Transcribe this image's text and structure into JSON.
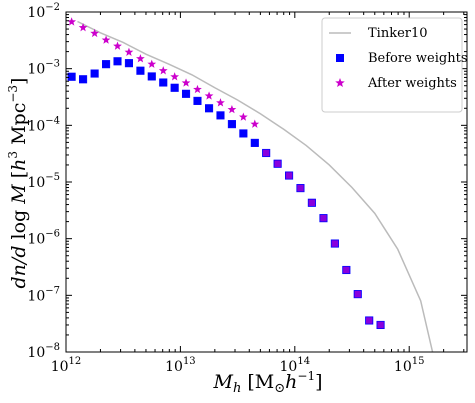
{
  "chart_data": {
    "type": "scatter",
    "title": "",
    "xlabel": "M_h [M_⊙ h^-1]",
    "ylabel": "dn/d log M [h^3 Mpc^-3]",
    "x_scale": "log",
    "y_scale": "log",
    "xlim": [
      1000000000000.0,
      3200000000000000.0
    ],
    "ylim": [
      1e-08,
      0.01
    ],
    "x_ticks": [
      {
        "value": 1000000000000.0,
        "base": "10",
        "exp": "12"
      },
      {
        "value": 10000000000000.0,
        "base": "10",
        "exp": "13"
      },
      {
        "value": 100000000000000.0,
        "base": "10",
        "exp": "14"
      },
      {
        "value": 1000000000000000.0,
        "base": "10",
        "exp": "15"
      }
    ],
    "y_ticks": [
      {
        "value": 1e-08,
        "base": "10",
        "exp": "−8"
      },
      {
        "value": 1e-07,
        "base": "10",
        "exp": "−7"
      },
      {
        "value": 1e-06,
        "base": "10",
        "exp": "−6"
      },
      {
        "value": 1e-05,
        "base": "10",
        "exp": "−5"
      },
      {
        "value": 0.0001,
        "base": "10",
        "exp": "−4"
      },
      {
        "value": 0.001,
        "base": "10",
        "exp": "−3"
      },
      {
        "value": 0.01,
        "base": "10",
        "exp": "−2"
      }
    ],
    "grid": false,
    "legend_position": "top-right",
    "series": [
      {
        "name": "Tinker10",
        "kind": "line",
        "color": "#bbbbbb",
        "x": [
          1260000000000.0,
          2000000000000.0,
          3160000000000.0,
          5000000000000.0,
          7940000000000.0,
          12600000000000.0,
          20000000000000.0,
          31600000000000.0,
          50000000000000.0,
          79400000000000.0,
          126000000000000.0,
          200000000000000.0,
          316000000000000.0,
          500000000000000.0,
          794000000000000.0,
          1260000000000000.0,
          1600000000000000.0
        ],
        "y": [
          0.0068,
          0.0043,
          0.0029,
          0.0018,
          0.0012,
          0.00078,
          0.00046,
          0.00028,
          0.00016,
          8.6e-05,
          4.4e-05,
          2e-05,
          8e-06,
          2.8e-06,
          6.5e-07,
          8e-08,
          1e-08
        ]
      },
      {
        "name": "Before weights",
        "kind": "marker",
        "marker": "square",
        "color": "#0000ff",
        "x": [
          1120000000000.0,
          1410000000000.0,
          1780000000000.0,
          2240000000000.0,
          2820000000000.0,
          3550000000000.0,
          4470000000000.0,
          5620000000000.0,
          7080000000000.0,
          8910000000000.0,
          11200000000000.0,
          14100000000000.0,
          17800000000000.0,
          22400000000000.0,
          28200000000000.0,
          35500000000000.0,
          44700000000000.0,
          56200000000000.0,
          70800000000000.0,
          89100000000000.0,
          112000000000000.0,
          141000000000000.0,
          178000000000000.0,
          224000000000000.0,
          282000000000000.0,
          355000000000000.0,
          447000000000000.0,
          562000000000000.0,
          708000000000000.0,
          891000000000000.0,
          1120000000000000.0,
          1410000000000000.0,
          1780000000000000.0
        ],
        "y": [
          0.00072,
          0.00065,
          0.00082,
          0.0012,
          0.00135,
          0.00125,
          0.00092,
          0.00073,
          0.00057,
          0.00046,
          0.00036,
          0.00027,
          0.0002,
          0.00015,
          0.000105,
          7.2e-05,
          4.9e-05,
          3.25e-05,
          2.1e-05,
          1.3e-05,
          7.8e-06,
          4.3e-06,
          2.3e-06,
          8.2e-07,
          2.8e-07,
          1.05e-07,
          3.6e-08,
          3e-08,
          0,
          0,
          0,
          0,
          0
        ]
      },
      {
        "name": "After weights",
        "kind": "marker",
        "marker": "star",
        "color": "#cc00cc",
        "x": [
          1120000000000.0,
          1410000000000.0,
          1780000000000.0,
          2240000000000.0,
          2820000000000.0,
          3550000000000.0,
          4470000000000.0,
          5620000000000.0,
          7080000000000.0,
          8910000000000.0,
          11200000000000.0,
          14100000000000.0,
          17800000000000.0,
          22400000000000.0,
          28200000000000.0,
          35500000000000.0,
          44700000000000.0
        ],
        "y": [
          0.0067,
          0.0053,
          0.0042,
          0.0032,
          0.0025,
          0.00195,
          0.0015,
          0.0012,
          0.00092,
          0.00072,
          0.00056,
          0.00043,
          0.00033,
          0.00025,
          0.00019,
          0.00014,
          0.000105
        ]
      }
    ]
  }
}
